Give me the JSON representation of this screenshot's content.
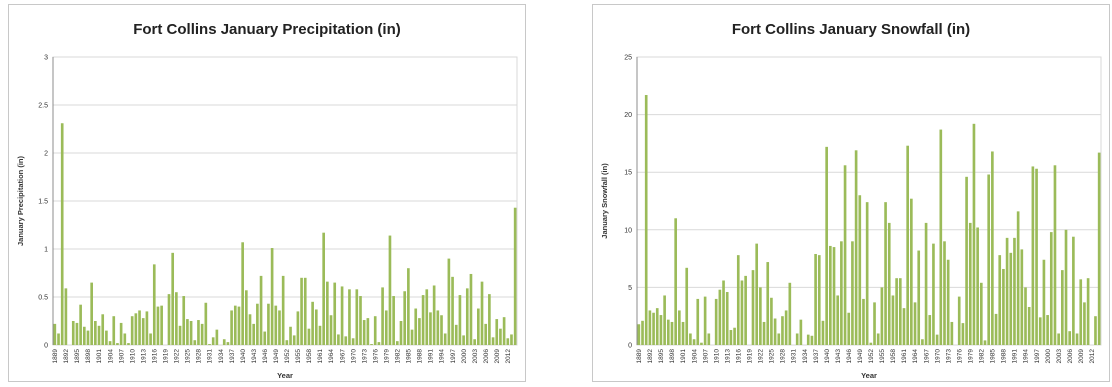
{
  "chart_data": [
    {
      "type": "bar",
      "title": "Fort Collins January Precipitation (in)",
      "xlabel": "Year",
      "ylabel": "January Precipitation (in)",
      "ylim": [
        0,
        3
      ],
      "yticks": [
        "0",
        "0.5",
        "1",
        "1.5",
        "2",
        "2.5",
        "3"
      ],
      "tick_years": [
        "1889",
        "1892",
        "1895",
        "1898",
        "1901",
        "1904",
        "1907",
        "1910",
        "1913",
        "1916",
        "1919",
        "1922",
        "1925",
        "1928",
        "1931",
        "1934",
        "1937",
        "1940",
        "1943",
        "1946",
        "1949",
        "1952",
        "1955",
        "1958",
        "1961",
        "1964",
        "1967",
        "1970",
        "1973",
        "1976",
        "1979",
        "1982",
        "1985",
        "1988",
        "1991",
        "1994",
        "1997",
        "2000",
        "2003",
        "2006",
        "2009",
        "2012"
      ],
      "start_year": 1889,
      "grid": true,
      "bar_color": "#9bbb59",
      "values": [
        0.22,
        0.12,
        2.31,
        0.59,
        0.0,
        0.25,
        0.23,
        0.42,
        0.19,
        0.15,
        0.65,
        0.25,
        0.2,
        0.32,
        0.15,
        0.04,
        0.3,
        0.02,
        0.23,
        0.12,
        0.02,
        0.3,
        0.33,
        0.36,
        0.28,
        0.35,
        0.12,
        0.84,
        0.4,
        0.41,
        0.0,
        0.53,
        0.96,
        0.55,
        0.2,
        0.51,
        0.27,
        0.25,
        0.05,
        0.26,
        0.22,
        0.44,
        0.01,
        0.08,
        0.16,
        0.0,
        0.06,
        0.03,
        0.36,
        0.41,
        0.4,
        1.07,
        0.57,
        0.32,
        0.22,
        0.43,
        0.72,
        0.14,
        0.43,
        1.01,
        0.41,
        0.36,
        0.72,
        0.05,
        0.19,
        0.1,
        0.35,
        0.7,
        0.7,
        0.17,
        0.45,
        0.37,
        0.2,
        1.17,
        0.66,
        0.31,
        0.65,
        0.11,
        0.61,
        0.09,
        0.58,
        0.07,
        0.58,
        0.51,
        0.26,
        0.28,
        0.01,
        0.3,
        0.03,
        0.6,
        0.36,
        1.14,
        0.51,
        0.04,
        0.25,
        0.56,
        0.8,
        0.16,
        0.38,
        0.28,
        0.52,
        0.58,
        0.34,
        0.62,
        0.36,
        0.31,
        0.12,
        0.9,
        0.71,
        0.21,
        0.52,
        0.1,
        0.59,
        0.74,
        0.06,
        0.38,
        0.66,
        0.22,
        0.53,
        0.08,
        0.27,
        0.17,
        0.29,
        0.07,
        0.11,
        1.43
      ]
    },
    {
      "type": "bar",
      "title": "Fort Collins January Snowfall (in)",
      "xlabel": "Year",
      "ylabel": "January Snowfall (in)",
      "ylim": [
        0,
        25
      ],
      "yticks": [
        "0",
        "5",
        "10",
        "15",
        "20",
        "25"
      ],
      "tick_years": [
        "1889",
        "1892",
        "1895",
        "1898",
        "1901",
        "1904",
        "1907",
        "1910",
        "1913",
        "1916",
        "1919",
        "1922",
        "1925",
        "1928",
        "1931",
        "1934",
        "1937",
        "1940",
        "1943",
        "1946",
        "1949",
        "1952",
        "1955",
        "1958",
        "1961",
        "1964",
        "1967",
        "1970",
        "1973",
        "1976",
        "1979",
        "1982",
        "1985",
        "1988",
        "1991",
        "1994",
        "1997",
        "2000",
        "2003",
        "2006",
        "2009",
        "2012"
      ],
      "start_year": 1889,
      "grid": true,
      "bar_color": "#9bbb59",
      "values": [
        1.8,
        2.1,
        21.7,
        3.0,
        2.8,
        3.2,
        2.6,
        4.3,
        2.2,
        2.0,
        11.0,
        3.0,
        2.0,
        6.7,
        1.0,
        0.5,
        4.0,
        0.2,
        4.2,
        1.0,
        0.0,
        4.0,
        4.8,
        5.6,
        4.6,
        1.3,
        1.5,
        7.8,
        5.6,
        6.0,
        0.0,
        6.5,
        8.8,
        5.0,
        2.0,
        7.2,
        4.1,
        2.3,
        1.0,
        2.5,
        3.0,
        5.4,
        0.0,
        1.0,
        2.2,
        0.0,
        0.9,
        0.8,
        7.9,
        7.8,
        2.1,
        17.2,
        8.6,
        8.5,
        4.3,
        9.0,
        15.6,
        2.8,
        9.0,
        16.9,
        13.0,
        4.0,
        12.4,
        0.2,
        3.7,
        1.0,
        5.0,
        12.4,
        10.6,
        4.3,
        5.8,
        5.8,
        3.2,
        17.3,
        12.7,
        3.7,
        8.2,
        0.5,
        10.6,
        2.6,
        8.8,
        0.9,
        18.7,
        9.0,
        7.4,
        2.0,
        0.0,
        4.2,
        1.9,
        14.6,
        10.6,
        19.2,
        10.2,
        5.4,
        0.4,
        14.8,
        16.8,
        2.7,
        7.8,
        6.6,
        9.3,
        8.0,
        9.3,
        11.6,
        8.3,
        5.0,
        3.3,
        15.5,
        15.3,
        2.4,
        7.4,
        2.6,
        9.8,
        15.6,
        1.0,
        6.5,
        10.0,
        1.2,
        9.4,
        1.0,
        5.7,
        3.7,
        5.8,
        0.0,
        2.5,
        16.7
      ]
    }
  ]
}
